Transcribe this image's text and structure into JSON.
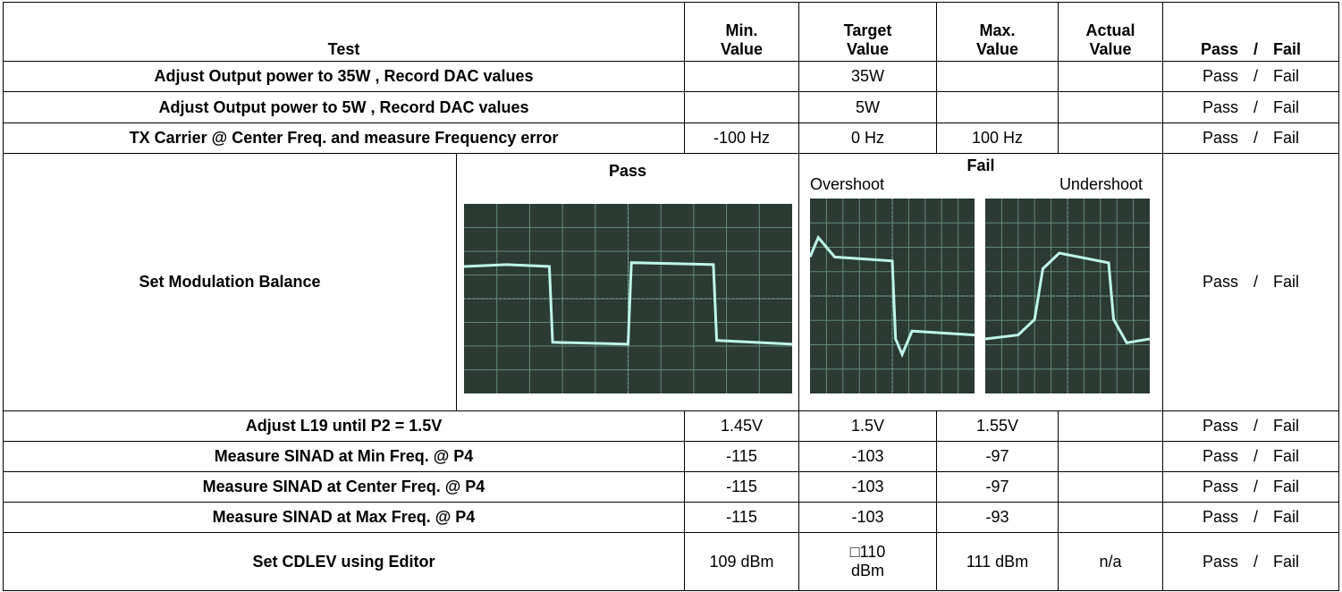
{
  "table": {
    "header": [
      "Test",
      "Min.\nValue",
      "Target\nValue",
      "Max.\nValue",
      "Actual\nValue",
      "Pass  / Fail"
    ],
    "rows": [
      {
        "test": "Adjust Output power to 35W , Record DAC values",
        "target": "35W",
        "pass_fail": "Pass / Fail"
      },
      {
        "test": "Adjust Output power to 5W , Record DAC values",
        "target": "5W",
        "pass_fail": "Pass / Fail"
      },
      {
        "test": "TX Carrier @ Center Freq. and measure Frequency error",
        "min": "-100 Hz",
        "target": "0 Hz",
        "max": "100 Hz",
        "pass_fail": "Pass / Fail"
      },
      {
        "test": "Set Modulation Balance",
        "pass_label": "Pass",
        "fail_label": "Fail",
        "overshoot": "Overshoot",
        "undershoot": "Undershoot",
        "pass_fail": "Pass / Fail"
      },
      {
        "test": "Adjust L19 until P2 = 1.5V",
        "min": "1.45V",
        "target": "1.5V",
        "max": "1.55V",
        "pass_fail": "Pass / Fail"
      },
      {
        "test": "Measure SINAD at Min Freq. @ P4",
        "min": "-115",
        "target": "-103",
        "max": "-97",
        "pass_fail": "Pass / Fail"
      },
      {
        "test": "Measure SINAD at Center Freq. @ P4",
        "min": "-115",
        "target": "-103",
        "max": "-97",
        "pass_fail": "Pass / Fail"
      },
      {
        "test": "Measure SINAD at Max Freq. @ P4",
        "min": "-115",
        "target": "-103",
        "max": "-93",
        "pass_fail": "Pass / Fail"
      },
      {
        "test": "Set CDLEV using Editor",
        "min": "109 dBm",
        "target": "□110\ndBm",
        "max": "111 dBm",
        "actual": "n/a",
        "pass_fail": "Pass / Fail"
      }
    ]
  }
}
